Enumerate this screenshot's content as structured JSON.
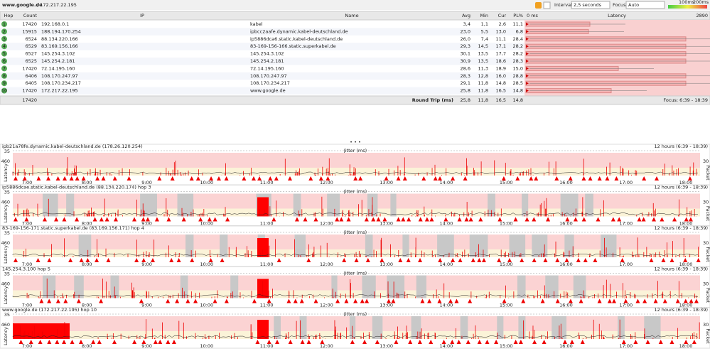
{
  "header": {
    "site": "www.google.de",
    "path": "/ 172.217.22.195",
    "interval_label": "Interval",
    "interval": "2,5 seconds",
    "focus_label": "Focus",
    "focus": "Auto",
    "scale_a": "100ms",
    "scale_b": "200ms"
  },
  "table": {
    "columns": [
      "Hop",
      "Count",
      "IP",
      "Name",
      "Avg",
      "Min",
      "Cur",
      "PL%",
      "Latency"
    ],
    "latency_min": "0 ms",
    "latency_max": "2890",
    "rows": [
      [
        "1",
        "17420",
        "192.168.0.1",
        "kabel",
        "3,4",
        "1,1",
        "2,6",
        "11,1"
      ],
      [
        "2",
        "15915",
        "188.194.170.254",
        "ipbcc2aafe.dynamic.kabel-deutschland.de",
        "23,0",
        "5,5",
        "13,0",
        "6,8"
      ],
      [
        "3",
        "6524",
        "88.134.220.166",
        "ip5886dca6.static.kabel-deutschland.de",
        "26,0",
        "7,4",
        "11,1",
        "28,4"
      ],
      [
        "4",
        "6529",
        "83.169.156.166",
        "83-169-156-166.static.superkabel.de",
        "29,3",
        "14,5",
        "17,1",
        "28,2"
      ],
      [
        "5",
        "6527",
        "145.254.3.102",
        "145.254.3.102",
        "30,1",
        "13,5",
        "17,7",
        "28,2"
      ],
      [
        "6",
        "6525",
        "145.254.2.181",
        "145.254.2.181",
        "30,9",
        "13,5",
        "18,6",
        "28,3"
      ],
      [
        "7",
        "17420",
        "72.14.195.160",
        "72.14.195.160",
        "28,6",
        "11,3",
        "18,9",
        "15,0"
      ],
      [
        "8",
        "6406",
        "108.170.247.97",
        "108.170.247.97",
        "28,3",
        "12,8",
        "16,0",
        "28,8"
      ],
      [
        "9",
        "6405",
        "108.170.234.217",
        "108.170.234.217",
        "29,1",
        "11,8",
        "14,8",
        "28,5"
      ],
      [
        "10",
        "17420",
        "172.217.22.195",
        "www.google.de",
        "25,8",
        "11,8",
        "16,5",
        "14,8"
      ]
    ],
    "summary": {
      "count": "17420",
      "label": "Round Trip (ms)",
      "avg": "25,8",
      "min": "11,8",
      "cur": "16,5",
      "pl": "14,8",
      "focus": "Focus: 6:39 - 18:39"
    }
  },
  "graphs": {
    "range": "12 hours (6:39 - 18:39)",
    "jitter": "Jitter (ms)",
    "y_top": "35",
    "y_mid": "460",
    "right": "30",
    "left_axis": "Latency",
    "right_axis": "Packet",
    "time_ticks": [
      "7:00",
      "8:00",
      "9:00",
      "10:00",
      "11:00",
      "12:00",
      "13:00",
      "14:00",
      "15:00",
      "16:00",
      "17:00",
      "18:00"
    ],
    "panels": [
      "ipb21a78fe.dynamic.kabel-deutschland.de (178.26.120.254)",
      "ip5886dcae.static.kabel-deutschland.de (88.134.220.174) hop 3",
      "83-169-156-171.static.superkabel.de (83.169.156.171) hop 4",
      "145.254.3.100 hop 5",
      "www.google.de (172.217.22.195) hop 10"
    ]
  }
}
